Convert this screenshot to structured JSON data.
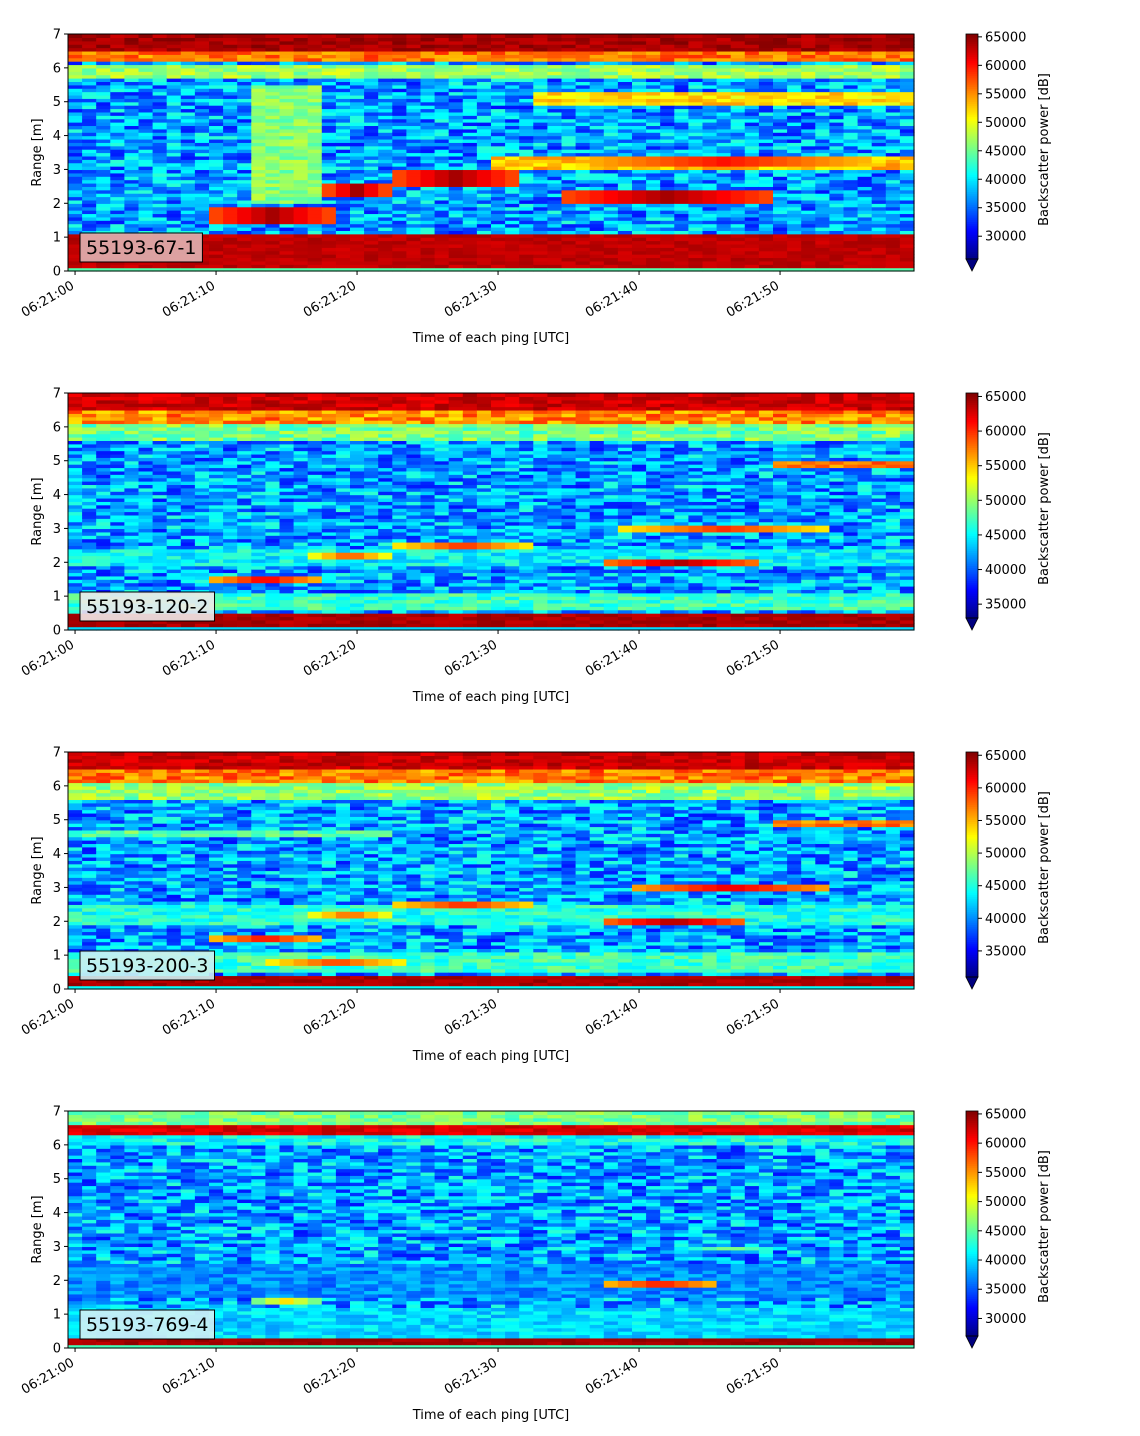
{
  "chart_data": [
    {
      "type": "heatmap",
      "label": "55193-67-1",
      "xlabel": "Time of each ping [UTC]",
      "ylabel": "Range [m]",
      "x_ticks": [
        "06:21:00",
        "06:21:10",
        "06:21:20",
        "06:21:30",
        "06:21:40",
        "06:21:50"
      ],
      "x_range_seconds": [
        -0.5,
        59.5
      ],
      "ylim": [
        0,
        7
      ],
      "y_ticks": [
        0,
        1,
        2,
        3,
        4,
        5,
        6,
        7
      ],
      "colorbar": {
        "label": "Backscatter power [dB]",
        "range": [
          26000,
          65500
        ],
        "ticks": [
          30000,
          35000,
          40000,
          45000,
          50000,
          55000,
          60000,
          65000
        ],
        "colormap": "jet",
        "extend": "min"
      },
      "grid": false,
      "features": {
        "bottom_band": [
          0.1,
          1.15,
          63000
        ],
        "top_band": [
          6.55,
          7.0,
          64000
        ],
        "mid_bands": [
          [
            6.2,
            6.5,
            56000
          ],
          [
            5.7,
            6.1,
            47000
          ]
        ],
        "horizontal_bands": [
          {
            "t0": 33,
            "t1": 59,
            "y0": 4.9,
            "y1": 5.35,
            "value": 52000
          },
          {
            "t0": 30,
            "t1": 59,
            "y0": 3.05,
            "y1": 3.45,
            "value": 53000
          }
        ],
        "blobs": [
          {
            "t0": 10,
            "t1": 18,
            "y0": 1.45,
            "y1": 1.95,
            "value": 64000
          },
          {
            "t0": 18,
            "t1": 22,
            "y0": 2.2,
            "y1": 2.65,
            "value": 64000
          },
          {
            "t0": 23,
            "t1": 31,
            "y0": 2.55,
            "y1": 3.0,
            "value": 64000
          },
          {
            "t0": 35,
            "t1": 49,
            "y0": 2.0,
            "y1": 2.45,
            "value": 64000
          },
          {
            "t0": 37,
            "t1": 55,
            "y0": 3.1,
            "y1": 3.4,
            "value": 60000
          }
        ],
        "vertical_bands": [
          {
            "t0": 13,
            "t1": 17,
            "y0": 2.0,
            "y1": 5.5,
            "value": 46000
          }
        ]
      }
    },
    {
      "type": "heatmap",
      "label": "55193-120-2",
      "xlabel": "Time of each ping [UTC]",
      "ylabel": "Range [m]",
      "x_ticks": [
        "06:21:00",
        "06:21:10",
        "06:21:20",
        "06:21:30",
        "06:21:40",
        "06:21:50"
      ],
      "x_range_seconds": [
        -0.5,
        59.5
      ],
      "ylim": [
        0,
        7
      ],
      "y_ticks": [
        0,
        1,
        2,
        3,
        4,
        5,
        6,
        7
      ],
      "colorbar": {
        "label": "Backscatter power [dB]",
        "range": [
          33000,
          65500
        ],
        "ticks": [
          35000,
          40000,
          45000,
          50000,
          55000,
          60000,
          65000
        ],
        "colormap": "jet",
        "extend": "min"
      },
      "grid": false,
      "features": {
        "bottom_band": [
          0.1,
          0.55,
          64000
        ],
        "top_band": [
          6.5,
          7.0,
          63000
        ],
        "mid_bands": [
          [
            6.1,
            6.5,
            57000
          ],
          [
            5.6,
            6.1,
            49000
          ]
        ],
        "horizontal_bands": [
          {
            "t0": 50,
            "t1": 59,
            "y0": 4.8,
            "y1": 5.0,
            "value": 58000
          },
          {
            "t0": 0,
            "t1": 59,
            "y0": 0.6,
            "y1": 1.1,
            "value": 47000
          },
          {
            "t0": 0,
            "t1": 59,
            "y0": 1.9,
            "y1": 2.4,
            "value": 45000
          }
        ],
        "blobs": [
          {
            "t0": 10,
            "t1": 17,
            "y0": 1.4,
            "y1": 1.6,
            "value": 62000
          },
          {
            "t0": 17,
            "t1": 22,
            "y0": 2.15,
            "y1": 2.3,
            "value": 59000
          },
          {
            "t0": 23,
            "t1": 32,
            "y0": 2.45,
            "y1": 2.65,
            "value": 60000
          },
          {
            "t0": 38,
            "t1": 48,
            "y0": 1.9,
            "y1": 2.1,
            "value": 64000
          },
          {
            "t0": 39,
            "t1": 53,
            "y0": 2.95,
            "y1": 3.1,
            "value": 60000
          }
        ],
        "vertical_bands": []
      }
    },
    {
      "type": "heatmap",
      "label": "55193-200-3",
      "xlabel": "Time of each ping [UTC]",
      "ylabel": "Range [m]",
      "x_ticks": [
        "06:21:00",
        "06:21:10",
        "06:21:20",
        "06:21:30",
        "06:21:40",
        "06:21:50"
      ],
      "x_range_seconds": [
        -0.5,
        59.5
      ],
      "ylim": [
        0,
        7
      ],
      "y_ticks": [
        0,
        1,
        2,
        3,
        4,
        5,
        6,
        7
      ],
      "colorbar": {
        "label": "Backscatter power [dB]",
        "range": [
          31000,
          65500
        ],
        "ticks": [
          35000,
          40000,
          45000,
          50000,
          55000,
          60000,
          65000
        ],
        "colormap": "jet",
        "extend": "min"
      },
      "grid": false,
      "features": {
        "bottom_band": [
          0.1,
          0.45,
          64000
        ],
        "top_band": [
          6.55,
          7.0,
          63000
        ],
        "mid_bands": [
          [
            6.1,
            6.55,
            57000
          ],
          [
            5.6,
            6.1,
            49000
          ]
        ],
        "horizontal_bands": [
          {
            "t0": 0,
            "t1": 59,
            "y0": 0.5,
            "y1": 1.1,
            "value": 46000
          },
          {
            "t0": 0,
            "t1": 59,
            "y0": 1.9,
            "y1": 2.5,
            "value": 45000
          },
          {
            "t0": 0,
            "t1": 22,
            "y0": 4.5,
            "y1": 4.7,
            "value": 47000
          },
          {
            "t0": 50,
            "t1": 59,
            "y0": 4.8,
            "y1": 5.0,
            "value": 57000
          }
        ],
        "blobs": [
          {
            "t0": 10,
            "t1": 17,
            "y0": 1.4,
            "y1": 1.6,
            "value": 61000
          },
          {
            "t0": 14,
            "t1": 23,
            "y0": 0.75,
            "y1": 0.9,
            "value": 59000
          },
          {
            "t0": 17,
            "t1": 22,
            "y0": 2.15,
            "y1": 2.3,
            "value": 58000
          },
          {
            "t0": 23,
            "t1": 32,
            "y0": 2.45,
            "y1": 2.6,
            "value": 60000
          },
          {
            "t0": 38,
            "t1": 47,
            "y0": 1.9,
            "y1": 2.1,
            "value": 64000
          },
          {
            "t0": 40,
            "t1": 53,
            "y0": 2.9,
            "y1": 3.1,
            "value": 62000
          }
        ],
        "vertical_bands": []
      }
    },
    {
      "type": "heatmap",
      "label": "55193-769-4",
      "xlabel": "Time of each ping [UTC]",
      "ylabel": "Range [m]",
      "x_ticks": [
        "06:21:00",
        "06:21:10",
        "06:21:20",
        "06:21:30",
        "06:21:40",
        "06:21:50"
      ],
      "x_range_seconds": [
        -0.5,
        59.5
      ],
      "ylim": [
        0,
        7
      ],
      "y_ticks": [
        0,
        1,
        2,
        3,
        4,
        5,
        6,
        7
      ],
      "colorbar": {
        "label": "Backscatter power [dB]",
        "range": [
          27000,
          65500
        ],
        "ticks": [
          30000,
          35000,
          40000,
          45000,
          50000,
          55000,
          60000,
          65000
        ],
        "colormap": "jet",
        "extend": "min"
      },
      "grid": false,
      "features": {
        "bottom_band": [
          0.1,
          0.3,
          64000
        ],
        "top_band": [
          6.3,
          6.6,
          62000
        ],
        "mid_bands": [
          [
            6.6,
            7.0,
            46000
          ],
          [
            6.0,
            6.3,
            42000
          ]
        ],
        "horizontal_bands": [
          {
            "t0": 0,
            "t1": 59,
            "y0": 0.3,
            "y1": 1.2,
            "value": 40000
          },
          {
            "t0": 0,
            "t1": 59,
            "y0": 1.5,
            "y1": 2.5,
            "value": 37000
          }
        ],
        "blobs": [
          {
            "t0": 13,
            "t1": 17,
            "y0": 1.35,
            "y1": 1.5,
            "value": 52000
          },
          {
            "t0": 38,
            "t1": 45,
            "y0": 1.85,
            "y1": 2.0,
            "value": 60000
          },
          {
            "t0": 43,
            "t1": 50,
            "y0": 2.95,
            "y1": 3.05,
            "value": 47000
          }
        ],
        "vertical_bands": []
      }
    }
  ]
}
